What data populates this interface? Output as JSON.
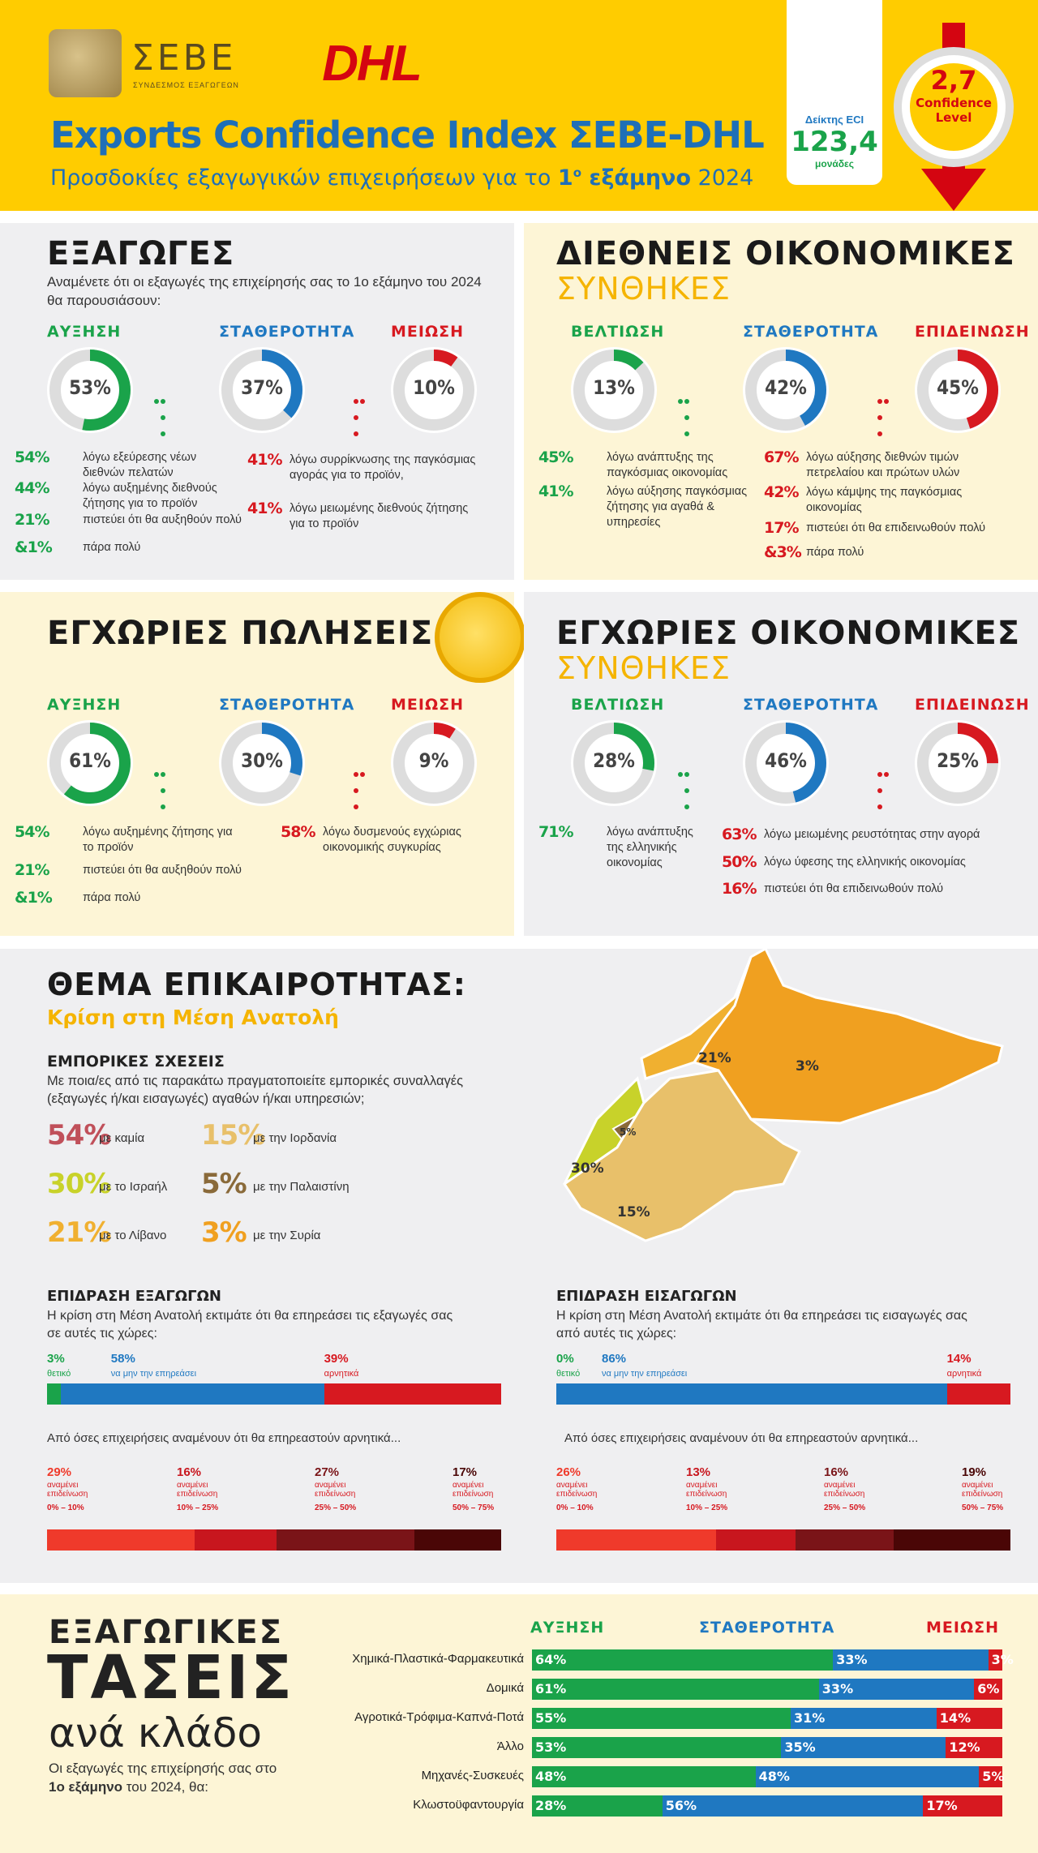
{
  "header": {
    "sebe_logo": "ΣΕΒΕ",
    "sebe_sub": "ΣΥΝΔΕΣΜΟΣ ΕΞΑΓΩΓΕΩΝ",
    "dhl_logo": "DHL",
    "title": "Exports Confidence Index ΣΕΒΕ-DHL",
    "subtitle_pre": "Προσδοκίες εξαγωγικών επιχειρήσεων για το ",
    "subtitle_num": "1",
    "subtitle_sup": "ο",
    "subtitle_bold": " εξάμηνο",
    "subtitle_post": " 2024",
    "eci_label": "Δείκτης ECI",
    "eci_value": "123,4",
    "eci_unit": "μονάδες",
    "confidence_value": "2,7",
    "confidence_label1": "Confidence",
    "confidence_label2": "Level",
    "colors": {
      "yellow": "#ffcc00",
      "blue": "#1f78c1",
      "red": "#d40511"
    }
  },
  "exports": {
    "title": "ΕΞΑΓΩΓΕΣ",
    "question": "Αναμένετε ότι οι εξαγωγές της επιχείρησής σας το 1ο εξάμηνο του 2024 θα παρουσιάσουν:",
    "labels": [
      "ΑΥΞΗΣΗ",
      "ΣΤΑΘΕΡΟΤΗΤΑ",
      "ΜΕΙΩΣΗ"
    ],
    "values": [
      "53%",
      "37%",
      "10%"
    ],
    "fractions": [
      0.53,
      0.37,
      0.1
    ],
    "up_reasons": [
      [
        "54%",
        "λόγω εξεύρεσης νέων διεθνών πελατών"
      ],
      [
        "44%",
        "λόγω αυξημένης διεθνούς ζήτησης για το προϊόν"
      ],
      [
        "21%",
        "πιστεύει ότι θα αυξηθούν πολύ"
      ],
      [
        "&1%",
        "πάρα πολύ"
      ]
    ],
    "down_reasons": [
      [
        "41%",
        "λόγω συρρίκνωσης της παγκόσμιας αγοράς για το προϊόν,"
      ],
      [
        "41%",
        "λόγω μειωμένης διεθνούς ζήτησης για το προϊόν"
      ]
    ]
  },
  "intl": {
    "title": "ΔΙΕΘΝΕΙΣ ΟΙΚΟΝΟΜΙΚΕΣ",
    "subtitle": "ΣΥΝΘΗΚΕΣ",
    "labels": [
      "ΒΕΛΤΙΩΣΗ",
      "ΣΤΑΘΕΡΟΤΗΤΑ",
      "ΕΠΙΔΕΙΝΩΣΗ"
    ],
    "values": [
      "13%",
      "42%",
      "45%"
    ],
    "fractions": [
      0.13,
      0.42,
      0.45
    ],
    "up_reasons": [
      [
        "45%",
        "λόγω ανάπτυξης της παγκόσμιας οικονομίας"
      ],
      [
        "41%",
        "λόγω αύξησης παγκόσμιας ζήτησης για αγαθά & υπηρεσίες"
      ]
    ],
    "down_reasons": [
      [
        "67%",
        "λόγω αύξησης διεθνών τιμών πετρελαίου και πρώτων υλών"
      ],
      [
        "42%",
        "λόγω κάμψης της παγκόσμιας οικονομίας"
      ],
      [
        "17%",
        "πιστεύει ότι θα επιδεινωθούν πολύ"
      ],
      [
        "&3%",
        "πάρα πολύ"
      ]
    ]
  },
  "domestic_sales": {
    "title": "ΕΓΧΩΡΙΕΣ ΠΩΛΗΣΕΙΣ",
    "labels": [
      "ΑΥΞΗΣΗ",
      "ΣΤΑΘΕΡΟΤΗΤΑ",
      "ΜΕΙΩΣΗ"
    ],
    "values": [
      "61%",
      "30%",
      "9%"
    ],
    "fractions": [
      0.61,
      0.3,
      0.09
    ],
    "up_reasons": [
      [
        "54%",
        "λόγω αυξημένης ζήτησης για το προϊόν"
      ],
      [
        "21%",
        "πιστεύει ότι θα αυξηθούν πολύ"
      ],
      [
        "&1%",
        "πάρα πολύ"
      ]
    ],
    "down_reasons": [
      [
        "58%",
        "λόγω δυσμενούς εγχώριας οικονομικής συγκυρίας"
      ]
    ]
  },
  "domestic_econ": {
    "title": "ΕΓΧΩΡΙΕΣ ΟΙΚΟΝΟΜΙΚΕΣ",
    "subtitle": "ΣΥΝΘΗΚΕΣ",
    "labels": [
      "ΒΕΛΤΙΩΣΗ",
      "ΣΤΑΘΕΡΟΤΗΤΑ",
      "ΕΠΙΔΕΙΝΩΣΗ"
    ],
    "values": [
      "28%",
      "46%",
      "25%"
    ],
    "fractions": [
      0.28,
      0.46,
      0.25
    ],
    "up_reasons": [
      [
        "71%",
        "λόγω ανάπτυξης της ελληνικής οικονομίας"
      ]
    ],
    "down_reasons": [
      [
        "63%",
        "λόγω μειωμένης ρευστότητας στην αγορά"
      ],
      [
        "50%",
        "λόγω ύφεσης της ελληνικής οικονομίας"
      ],
      [
        "16%",
        "πιστεύει ότι θα επιδεινωθούν πολύ"
      ]
    ]
  },
  "topic": {
    "title": "ΘΕΜΑ ΕΠΙΚΑΙΡΟΤΗΤΑΣ:",
    "subtitle": "Κρίση στη Μέση Ανατολή",
    "trade_title": "ΕΜΠΟΡΙΚΕΣ ΣΧΕΣΕΙΣ",
    "trade_question": "Με ποια/ες από τις παρακάτω πραγματοποιείτε εμπορικές συναλλαγές (εξαγωγές ή/και εισαγωγές) αγαθών ή/και υπηρεσιών;",
    "trade_items": [
      {
        "pct": "54%",
        "label": "με καμία",
        "color": "#c0505a"
      },
      {
        "pct": "15%",
        "label": "με την Ιορδανία",
        "color": "#e8c06a"
      },
      {
        "pct": "30%",
        "label": "με το Ισραήλ",
        "color": "#c8d22a"
      },
      {
        "pct": "5%",
        "label": "με την Παλαιστίνη",
        "color": "#8a6a3a"
      },
      {
        "pct": "21%",
        "label": "με το Λίβανο",
        "color": "#f0b030"
      },
      {
        "pct": "3%",
        "label": "με την Συρία",
        "color": "#f0a020"
      }
    ],
    "map_labels": [
      "21%",
      "3%",
      "5%",
      "30%",
      "15%"
    ],
    "exp_title": "ΕΠΙΔΡΑΣΗ ΕΞΑΓΩΓΩΝ",
    "exp_text": "Η κρίση στη Μέση Ανατολή εκτιμάτε ότι θα επηρεάσει τις εξαγωγές σας σε αυτές τις χώρες:",
    "exp_bar": [
      [
        "3%",
        "θετικό",
        3
      ],
      [
        "58%",
        "να μην την επηρεάσει",
        58
      ],
      [
        "39%",
        "αρνητικά",
        39
      ]
    ],
    "exp_neg_title": "Από όσες επιχειρήσεις αναμένουν ότι θα επηρεαστούν αρνητικά...",
    "exp_neg": [
      [
        "29%",
        "αναμένει επιδείνωση",
        "0% – 10%",
        29
      ],
      [
        "16%",
        "αναμένει επιδείνωση",
        "10% – 25%",
        16
      ],
      [
        "27%",
        "αναμένει επιδείνωση",
        "25% – 50%",
        27
      ],
      [
        "17%",
        "αναμένει επιδείνωση",
        "50% – 75%",
        17
      ]
    ],
    "imp_title": "ΕΠΙΔΡΑΣΗ ΕΙΣΑΓΩΓΩΝ",
    "imp_text": "Η κρίση στη Μέση Ανατολή εκτιμάτε ότι θα επηρεάσει τις εισαγωγές σας από αυτές τις χώρες:",
    "imp_bar": [
      [
        "0%",
        "θετικό",
        0
      ],
      [
        "86%",
        "να μην την επηρεάσει",
        86
      ],
      [
        "14%",
        "αρνητικά",
        14
      ]
    ],
    "imp_neg_title": "Από όσες επιχειρήσεις αναμένουν ότι θα επηρεαστούν αρνητικά...",
    "imp_neg": [
      [
        "26%",
        "αναμένει επιδείνωση",
        "0% – 10%",
        26
      ],
      [
        "13%",
        "αναμένει επιδείνωση",
        "10% – 25%",
        13
      ],
      [
        "16%",
        "αναμένει επιδείνωση",
        "25% – 50%",
        16
      ],
      [
        "19%",
        "αναμένει επιδείνωση",
        "50% – 75%",
        19
      ]
    ]
  },
  "sectors": {
    "title1": "ΕΞΑΓΩΓΙΚΕΣ",
    "title2": "ΤΑΣΕΙΣ",
    "title3": "ανά κλάδο",
    "desc_pre": "Οι εξαγωγές της επιχείρησής σας στο ",
    "desc_bold": "1ο εξάμηνο",
    "desc_post": " του 2024, θα:",
    "headers": [
      "ΑΥΞΗΣΗ",
      "ΣΤΑΘΕΡΟΤΗΤΑ",
      "ΜΕΙΩΣΗ"
    ],
    "rows": [
      {
        "name": "Χημικά-Πλαστικά-Φαρμακευτικά",
        "up": 64,
        "flat": 33,
        "down": 3
      },
      {
        "name": "Δομικά",
        "up": 61,
        "flat": 33,
        "down": 6
      },
      {
        "name": "Αγροτικά-Τρόφιμα-Καπνά-Ποτά",
        "up": 55,
        "flat": 31,
        "down": 14
      },
      {
        "name": "Άλλο",
        "up": 53,
        "flat": 35,
        "down": 12
      },
      {
        "name": "Μηχανές-Συσκευές",
        "up": 48,
        "flat": 48,
        "down": 5
      },
      {
        "name": "Κλωστοϋφαντουργία",
        "up": 28,
        "flat": 56,
        "down": 17
      }
    ]
  }
}
